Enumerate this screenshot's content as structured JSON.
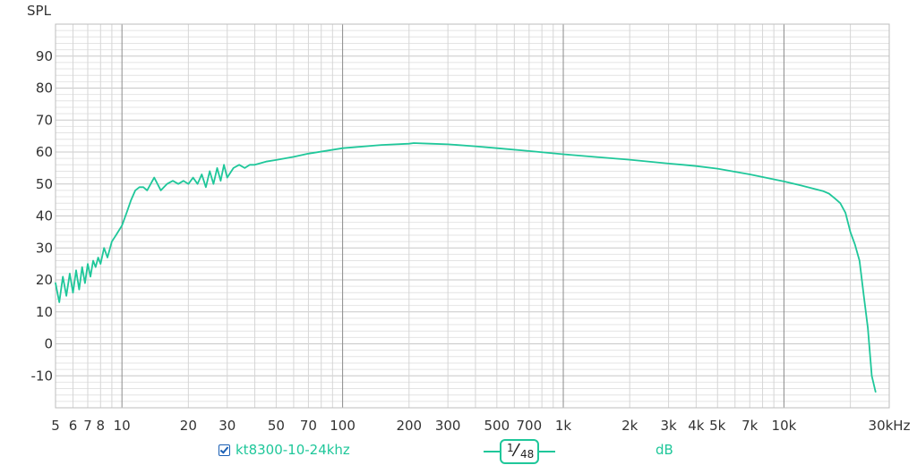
{
  "chart_data": {
    "type": "line",
    "ylabel": "SPL",
    "xunit_label": "30kHz",
    "x_scale": "log",
    "xlim": [
      5,
      30000
    ],
    "ylim": [
      -20,
      100
    ],
    "y_ticks": [
      90,
      80,
      70,
      60,
      50,
      40,
      30,
      20,
      10,
      0,
      -10
    ],
    "x_ticks": [
      {
        "value": 5,
        "label": "5"
      },
      {
        "value": 6,
        "label": "6"
      },
      {
        "value": 7,
        "label": "7"
      },
      {
        "value": 8,
        "label": "8"
      },
      {
        "value": 10,
        "label": "10"
      },
      {
        "value": 20,
        "label": "20"
      },
      {
        "value": 30,
        "label": "30"
      },
      {
        "value": 50,
        "label": "50"
      },
      {
        "value": 70,
        "label": "70"
      },
      {
        "value": 100,
        "label": "100"
      },
      {
        "value": 200,
        "label": "200"
      },
      {
        "value": 300,
        "label": "300"
      },
      {
        "value": 500,
        "label": "500"
      },
      {
        "value": 700,
        "label": "700"
      },
      {
        "value": 1000,
        "label": "1k"
      },
      {
        "value": 2000,
        "label": "2k"
      },
      {
        "value": 3000,
        "label": "3k"
      },
      {
        "value": 4000,
        "label": "4k"
      },
      {
        "value": 5000,
        "label": "5k"
      },
      {
        "value": 7000,
        "label": "7k"
      },
      {
        "value": 10000,
        "label": "10k"
      }
    ],
    "grid": true,
    "series": [
      {
        "name": "kt8300-10-24khz",
        "color": "#1fc79a",
        "x": [
          5,
          5.2,
          5.4,
          5.6,
          5.8,
          6,
          6.2,
          6.4,
          6.6,
          6.8,
          7,
          7.2,
          7.4,
          7.6,
          7.8,
          8,
          8.3,
          8.6,
          9,
          9.4,
          10,
          10.5,
          11,
          11.5,
          12,
          12.5,
          13,
          14,
          15,
          16,
          17,
          18,
          19,
          20,
          21,
          22,
          23,
          24,
          25,
          26,
          27,
          28,
          29,
          30,
          32,
          34,
          36,
          38,
          40,
          45,
          50,
          60,
          70,
          100,
          150,
          200,
          210,
          250,
          300,
          400,
          500,
          700,
          1000,
          1500,
          2000,
          3000,
          3500,
          4000,
          5000,
          7000,
          10000,
          12000,
          15000,
          16000,
          17000,
          18000,
          19000,
          20000,
          21000,
          22000,
          23000,
          24000,
          25000,
          26000
        ],
        "values": [
          19,
          13,
          21,
          15,
          22,
          16,
          23,
          17,
          24,
          19,
          25,
          21,
          26,
          24,
          27,
          25,
          30,
          27,
          32,
          34,
          37,
          41,
          45,
          48,
          49,
          49,
          48,
          52,
          48,
          50,
          51,
          50,
          51,
          50,
          52,
          50,
          53,
          49,
          54,
          50,
          55,
          51,
          56,
          52,
          55,
          56,
          55,
          56,
          56,
          57,
          57.5,
          58.5,
          59.5,
          61.2,
          62.2,
          62.6,
          62.8,
          62.6,
          62.4,
          61.8,
          61.2,
          60.3,
          59.3,
          58.3,
          57.6,
          56.4,
          56.0,
          55.6,
          54.8,
          53.0,
          50.8,
          49.5,
          47.8,
          47.0,
          45.5,
          44,
          41,
          35,
          31,
          26,
          15,
          5,
          -10,
          -15
        ]
      }
    ],
    "smoothing": {
      "numerator": "1",
      "denominator": "48"
    },
    "unit_label": "dB"
  }
}
